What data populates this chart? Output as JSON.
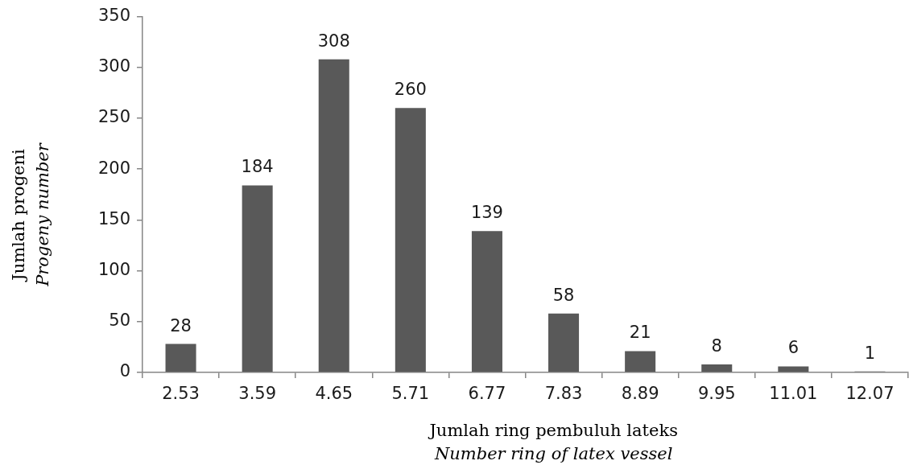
{
  "chart_data": {
    "type": "bar",
    "categories": [
      "2.53",
      "3.59",
      "4.65",
      "5.71",
      "6.77",
      "7.83",
      "8.89",
      "9.95",
      "11.01",
      "12.07"
    ],
    "values": [
      28,
      184,
      308,
      260,
      139,
      58,
      21,
      8,
      6,
      1
    ],
    "color": "#595959",
    "ylim": [
      0,
      350
    ],
    "yticks": [
      0,
      50,
      100,
      150,
      200,
      250,
      300,
      350
    ],
    "data_labels": true,
    "xlabel": "Jumlah ring pembuluh lateks\nNumber ring of latex vessel",
    "ylabel": "Jumlah progeni\nProgeny number"
  }
}
